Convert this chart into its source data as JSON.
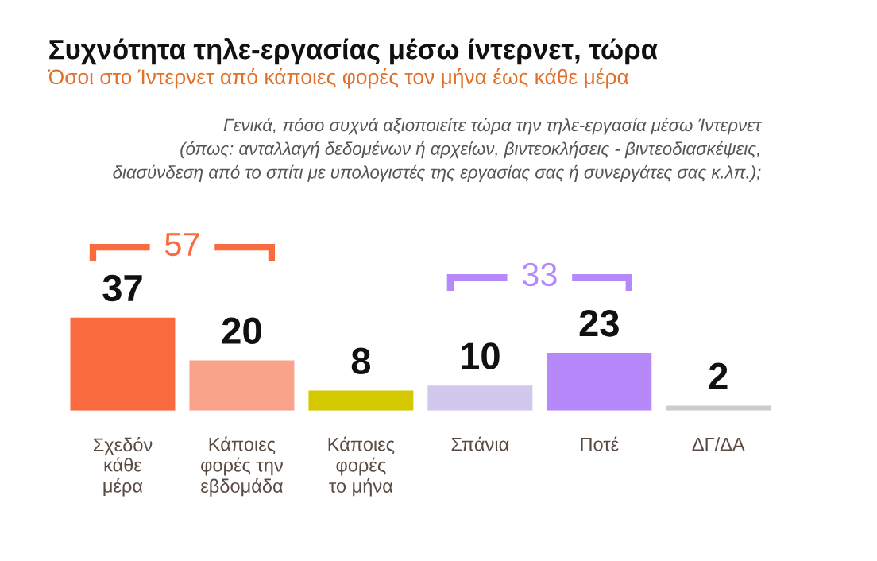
{
  "chart_data": {
    "type": "bar",
    "title": "Συχνότητα τηλε-εργασίας μέσω ίντερνετ, τώρα",
    "subtitle": "Όσοι στο Ίντερνετ από κάποιες φορές τον μήνα έως κάθε μέρα",
    "annotations": [
      "Γενικά, πόσο συχνά αξιοποιείτε τώρα την τηλε-εργασία μέσω Ίντερνετ\n(όπως: ανταλλαγή δεδομένων ή αρχείων, βιντεοκλήσεις - βιντεοδιασκέψεις,\nδιασύνδεση από το σπίτι με υπολογιστές της εργασίας σας ή συνεργάτες σας κ.λπ.);",
      "57",
      "33"
    ],
    "categories": [
      "Σχεδόν\nκάθε\nμέρα",
      "Κάποιες\nφορές την\nεβδομάδα",
      "Κάποιες\nφορές\nτο μήνα",
      "Σπάνια",
      "Ποτέ",
      "ΔΓ/ΔΑ"
    ],
    "values": [
      37,
      20,
      8,
      10,
      23,
      2
    ],
    "colors": [
      "#fa6a3f",
      "#f9a38a",
      "#d4c800",
      "#d2c7ec",
      "#b689fb",
      "#cccccc"
    ],
    "data_labels": true,
    "grid": false,
    "legend": false
  }
}
